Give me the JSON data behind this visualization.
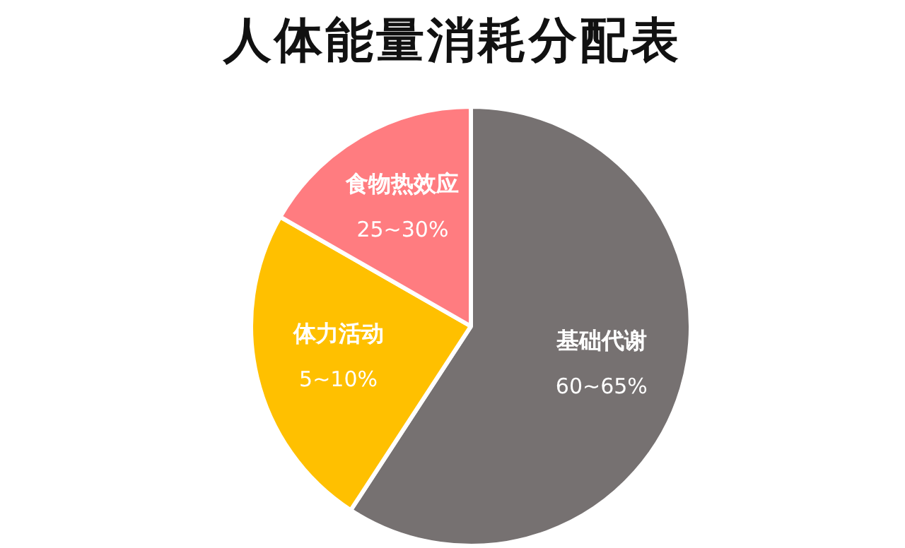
{
  "chart_data": {
    "type": "pie",
    "title": "人体能量消耗分配表",
    "categories": [
      "基础代谢",
      "体力活动",
      "食物热效应"
    ],
    "values": [
      59.2,
      24.1,
      16.7
    ],
    "colors": [
      "#767171",
      "#ffc000",
      "#ff7c80"
    ],
    "annotations": [
      "60~65%",
      "5~10%",
      "25~30%"
    ],
    "legend": false
  }
}
